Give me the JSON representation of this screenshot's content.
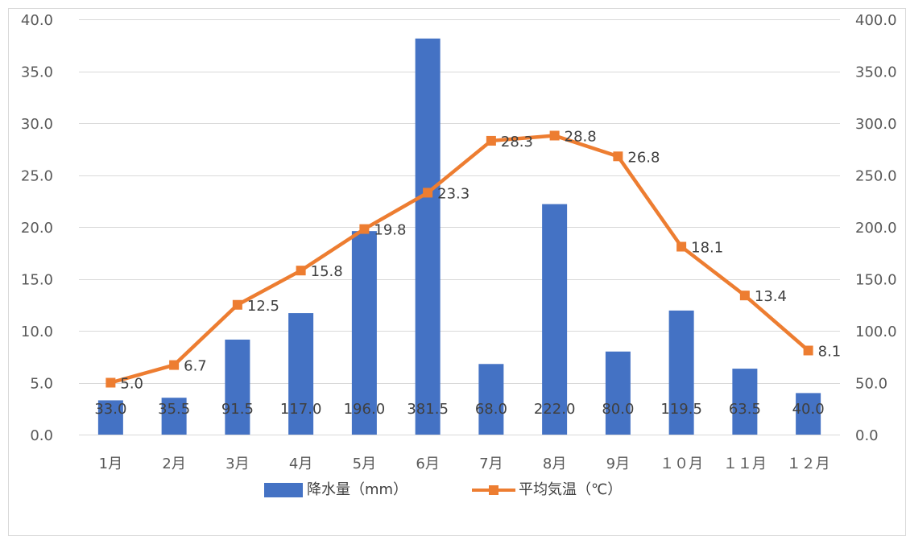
{
  "chart_data": {
    "type": "bar",
    "categories": [
      "1月",
      "2月",
      "3月",
      "4月",
      "5月",
      "6月",
      "7月",
      "8月",
      "9月",
      "１０月",
      "１１月",
      "１２月"
    ],
    "series": [
      {
        "name": "降水量（mm）",
        "type": "bar",
        "axis": "right",
        "color": "#4472C4",
        "values": [
          33.0,
          35.5,
          91.5,
          117.0,
          196.0,
          381.5,
          68.0,
          222.0,
          80.0,
          119.5,
          63.5,
          40.0
        ],
        "labels": [
          "33.0",
          "35.5",
          "91.5",
          "117.0",
          "196.0",
          "381.5",
          "68.0",
          "222.0",
          "80.0",
          "119.5",
          "63.5",
          "40.0"
        ]
      },
      {
        "name": "平均気温（℃）",
        "type": "line",
        "axis": "left",
        "color": "#ED7D31",
        "marker": "square",
        "values": [
          5.0,
          6.7,
          12.5,
          15.8,
          19.8,
          23.3,
          28.3,
          28.8,
          26.8,
          18.1,
          13.4,
          8.1
        ],
        "labels": [
          "5.0",
          "6.7",
          "12.5",
          "15.8",
          "19.8",
          "23.3",
          "28.3",
          "28.8",
          "26.8",
          "18.1",
          "13.4",
          "8.1"
        ]
      }
    ],
    "y_left": {
      "range": [
        0,
        40
      ],
      "step": 5,
      "tick_labels": [
        "0.0",
        "5.0",
        "10.0",
        "15.0",
        "20.0",
        "25.0",
        "30.0",
        "35.0",
        "40.0"
      ]
    },
    "y_right": {
      "range": [
        0,
        400
      ],
      "step": 50,
      "tick_labels": [
        "0.0",
        "50.0",
        "100.0",
        "150.0",
        "200.0",
        "250.0",
        "300.0",
        "350.0",
        "400.0"
      ]
    },
    "grid": true,
    "legend_position": "bottom",
    "gridline_color": "#D9D9D9",
    "axis_text_color": "#595959"
  }
}
